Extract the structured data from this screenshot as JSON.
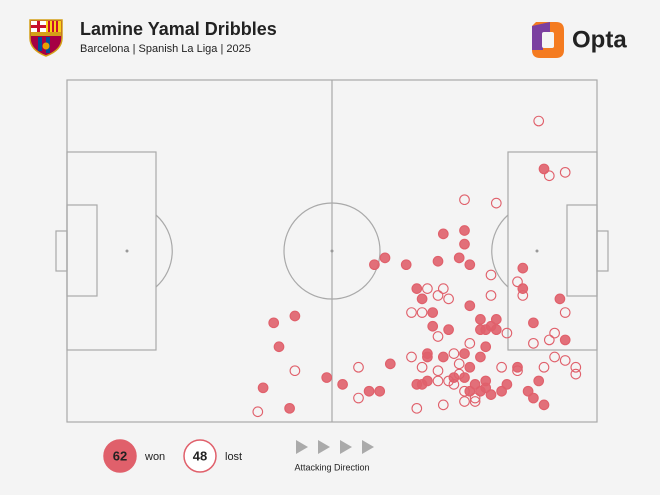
{
  "chart_data": {
    "type": "scatter",
    "title": "Lamine Yamal Dribbles",
    "subtitle": "Barcelona | Spanish La Liga | 2025",
    "brand": "Opta",
    "annotation": "Attacking Direction",
    "xlim": [
      0,
      100
    ],
    "ylim": [
      0,
      100
    ],
    "series": [
      {
        "name": "won",
        "count": 62,
        "color": "#e0606b",
        "filled": true,
        "x": [
          39,
          43,
          40,
          37,
          42,
          49,
          52,
          57,
          59,
          58,
          60,
          64,
          61,
          66,
          66,
          67,
          71,
          75,
          75,
          70,
          74,
          76,
          76,
          69,
          69,
          72,
          68,
          68,
          71,
          75,
          78,
          79,
          80,
          79,
          78,
          76,
          75,
          73,
          77,
          78,
          79,
          76,
          80,
          82,
          83,
          85,
          87,
          88,
          90,
          89,
          88,
          93,
          94,
          86,
          86,
          90,
          78,
          81,
          79,
          67,
          68,
          81
        ],
        "values": [
          71,
          69,
          78,
          90,
          96,
          87,
          89,
          91,
          91,
          54,
          52,
          54,
          83,
          89,
          61,
          64,
          45,
          44,
          48,
          53,
          52,
          54,
          66,
          68,
          72,
          73,
          80,
          81,
          81,
          80,
          73,
          73,
          72,
          78,
          81,
          84,
          87,
          87,
          89,
          91,
          90,
          91,
          92,
          91,
          89,
          84,
          91,
          93,
          95,
          88,
          71,
          64,
          76,
          55,
          61,
          26,
          70,
          73,
          88,
          89,
          88,
          70
        ]
      },
      {
        "name": "lost",
        "count": 48,
        "color": "#e0606b",
        "filled": false,
        "x": [
          89,
          91,
          94,
          75,
          81,
          80,
          80,
          86,
          85,
          71,
          70,
          72,
          65,
          67,
          70,
          65,
          67,
          73,
          76,
          74,
          74,
          70,
          72,
          75,
          75,
          77,
          66,
          71,
          77,
          82,
          90,
          94,
          94,
          92,
          92,
          96,
          96,
          83,
          55,
          55,
          43,
          36,
          73,
          88,
          91,
          85,
          70,
          68
        ],
        "values": [
          12,
          28,
          27,
          35,
          36,
          57,
          63,
          63,
          59,
          61,
          63,
          64,
          68,
          68,
          75,
          81,
          84,
          80,
          77,
          83,
          86,
          88,
          88,
          91,
          94,
          93,
          96,
          95,
          94,
          84,
          84,
          82,
          68,
          74,
          81,
          84,
          86,
          74,
          84,
          93,
          85,
          97,
          89,
          77,
          76,
          85,
          85,
          61
        ]
      }
    ]
  }
}
